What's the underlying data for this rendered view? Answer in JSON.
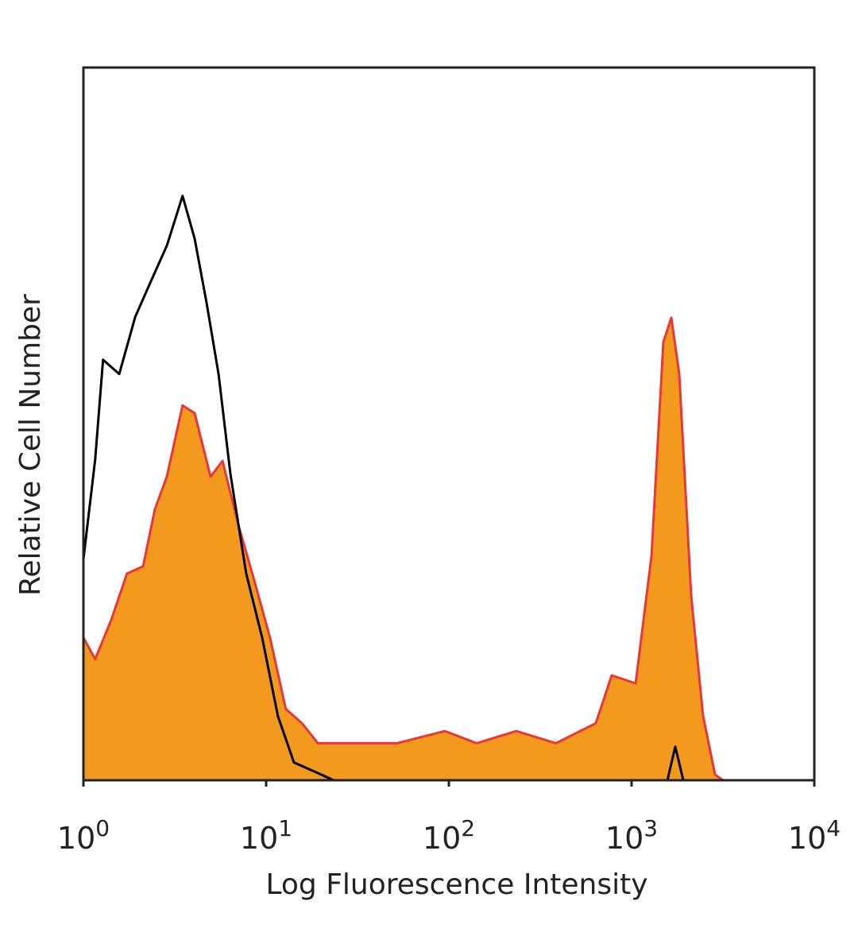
{
  "chart_data": {
    "type": "histogram-overlay",
    "x_label": "Log Fluorescence Intensity",
    "y_label": "Relative Cell Number",
    "xscale": "log",
    "xlim": [
      1,
      10000
    ],
    "ylim": [
      0,
      100
    ],
    "xticks": [
      {
        "value": 1,
        "label": "10",
        "exponent": "0"
      },
      {
        "value": 10,
        "label": "10",
        "exponent": "1"
      },
      {
        "value": 100,
        "label": "10",
        "exponent": "2"
      },
      {
        "value": 1000,
        "label": "10",
        "exponent": "3"
      },
      {
        "value": 10000,
        "label": "10",
        "exponent": "4"
      }
    ],
    "series": [
      {
        "color": "#f39a1e",
        "line_color": "#e8373a",
        "filled": true,
        "x": [
          1,
          1.16,
          1.42,
          1.73,
          2.12,
          2.46,
          2.86,
          3.49,
          4.06,
          4.96,
          5.77,
          7.04,
          8.61,
          10.5,
          12.8,
          15.7,
          19.2,
          25.9,
          52.1,
          95.1,
          142,
          234,
          386,
          637,
          778,
          1052,
          1284,
          1492,
          1649,
          1823,
          2118,
          2460,
          2862,
          3162
        ],
        "values": [
          20,
          17,
          22.5,
          29,
          30,
          38,
          42.6,
          52.6,
          51.5,
          42.6,
          44.8,
          35.9,
          28,
          20,
          10,
          8,
          5.2,
          5.2,
          5.2,
          6.9,
          5.2,
          6.9,
          5.2,
          8,
          14.7,
          13.6,
          31.4,
          61.5,
          64.9,
          57,
          25.9,
          9.1,
          0.8,
          0
        ]
      },
      {
        "color": "#000000",
        "filled": false,
        "x": [
          1,
          1.16,
          1.28,
          1.57,
          1.92,
          2.34,
          2.86,
          3.49,
          4.06,
          4.72,
          5.49,
          6.37,
          7.78,
          9.51,
          11.6,
          14.2,
          19.2,
          23.4,
          1570,
          1734,
          1918,
          10000
        ],
        "values": [
          31,
          45,
          59,
          57,
          65,
          70,
          75,
          82,
          76,
          67,
          57,
          43,
          29,
          20,
          9,
          2.5,
          1,
          0,
          0,
          4.7,
          0,
          0
        ]
      }
    ]
  }
}
